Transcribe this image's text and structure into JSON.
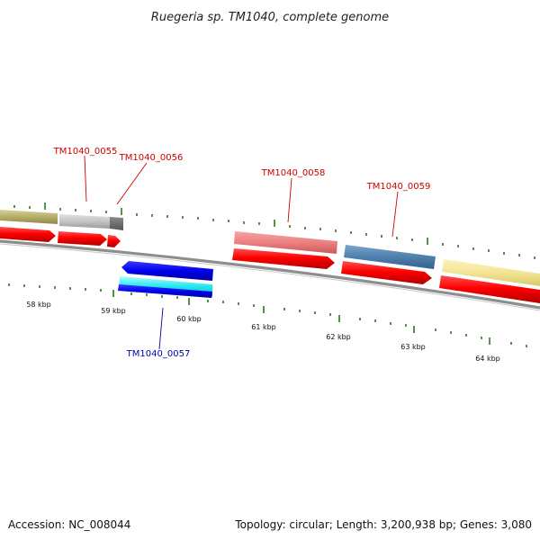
{
  "title": "Ruegeria sp. TM1040, complete genome",
  "footer": {
    "accession": "Accession: NC_008044",
    "summary": "Topology: circular; Length: 3,200,938 bp; Genes: 3,080"
  },
  "colors": {
    "forward_label": "#cc0000",
    "reverse_label": "#0000aa",
    "cds_forward": "#ff0000",
    "cds_reverse": "#0000ff",
    "tick_major": "#2a7a1a",
    "backbone": "#808080"
  },
  "gene_labels": [
    {
      "id": "TM1040_0055",
      "strand": "forward"
    },
    {
      "id": "TM1040_0056",
      "strand": "forward"
    },
    {
      "id": "TM1040_0058",
      "strand": "forward"
    },
    {
      "id": "TM1040_0059",
      "strand": "forward"
    },
    {
      "id": "TM1040_0057",
      "strand": "reverse"
    }
  ],
  "kbp_labels": [
    "58 kbp",
    "59 kbp",
    "60 kbp",
    "61 kbp",
    "62 kbp",
    "63 kbp",
    "64 kbp"
  ]
}
